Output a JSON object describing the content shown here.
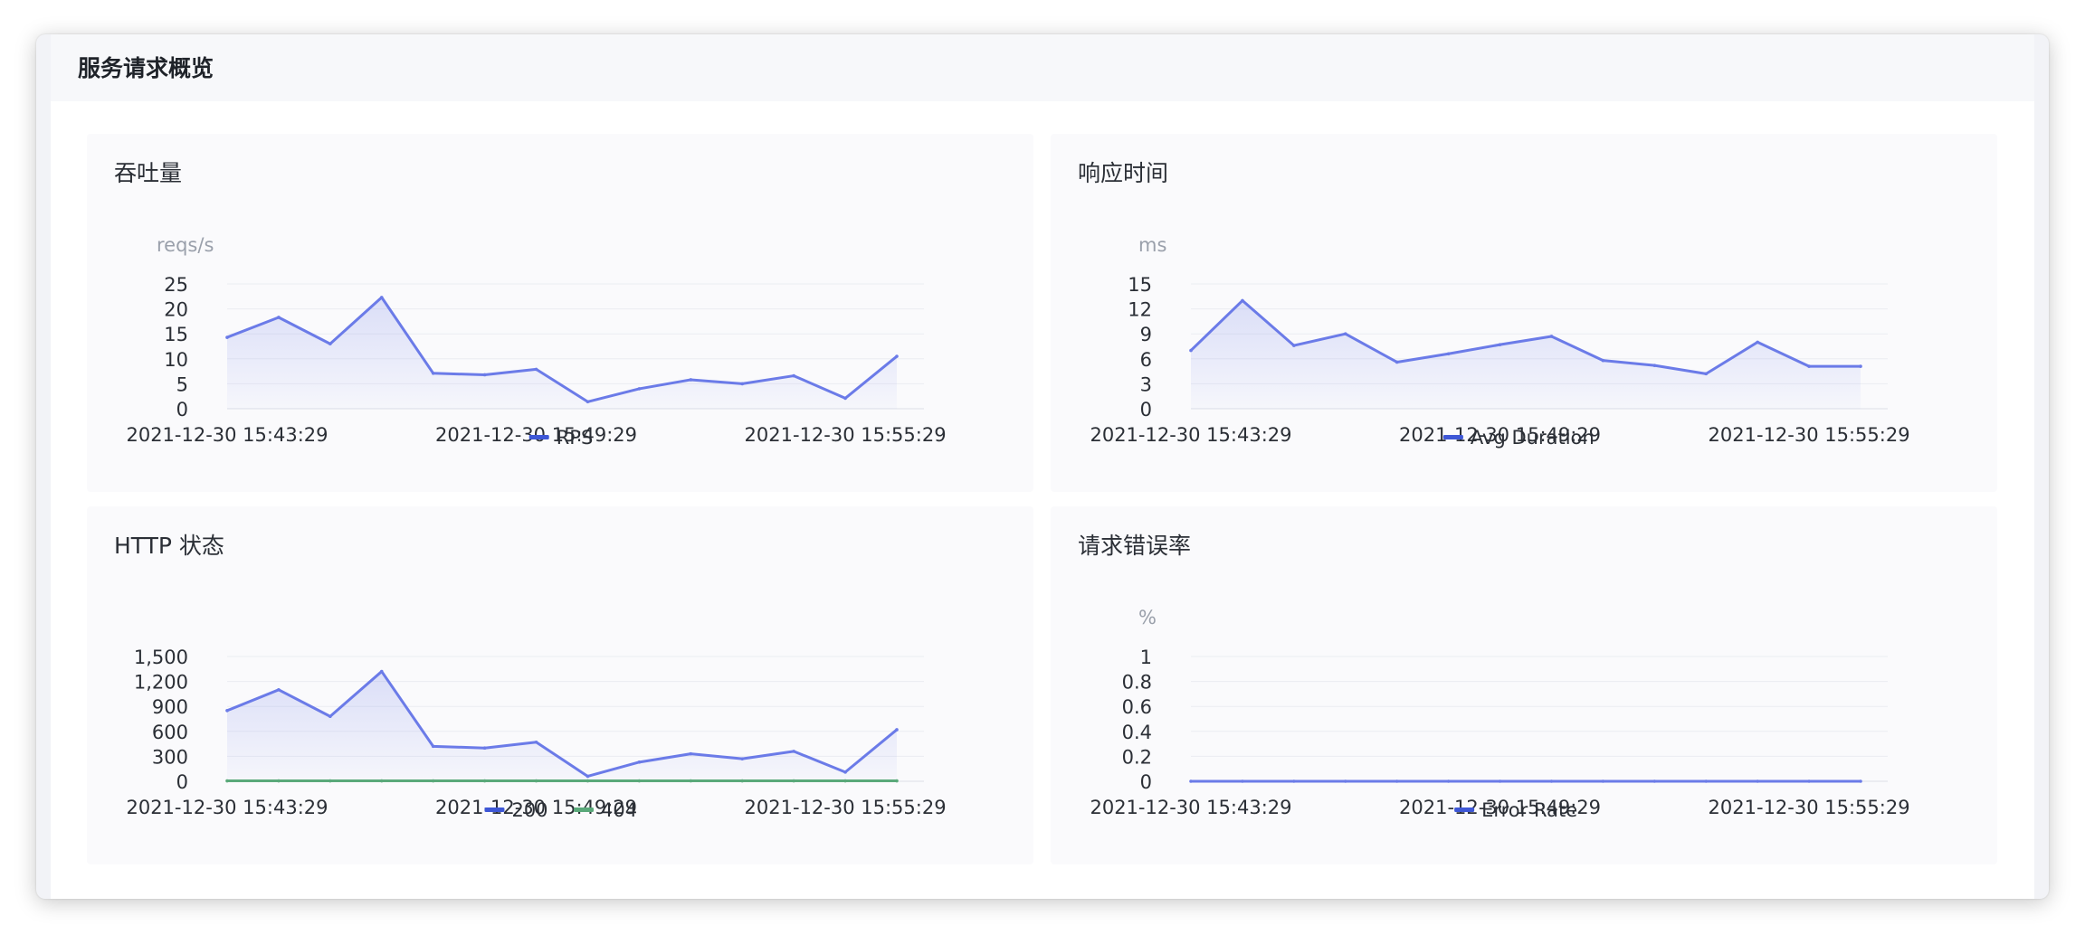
{
  "header": {
    "title": "服务请求概览"
  },
  "colors": {
    "primary": "#6b7be8",
    "primary_fill": "#dfe3fa",
    "legend_blue": "#3e57d6",
    "green": "#5aa97a",
    "axis_text": "#2b2f36",
    "unit_text": "#9aa0ab",
    "grid": "#ebedf2"
  },
  "charts": [
    {
      "title": "吞吐量",
      "chart_data": {
        "type": "area",
        "unit": "reqs/s",
        "x": [
          "2021-12-30 15:43:29",
          "2021-12-30 15:44:29",
          "2021-12-30 15:45:29",
          "2021-12-30 15:46:29",
          "2021-12-30 15:47:29",
          "2021-12-30 15:48:29",
          "2021-12-30 15:49:29",
          "2021-12-30 15:50:29",
          "2021-12-30 15:51:29",
          "2021-12-30 15:52:29",
          "2021-12-30 15:53:29",
          "2021-12-30 15:54:29",
          "2021-12-30 15:55:29",
          "2021-12-30 15:56:29"
        ],
        "x_tick_labels": [
          "2021-12-30 15:43:29",
          "2021-12-30 15:49:29",
          "2021-12-30 15:55:29"
        ],
        "y_ticks": [
          "0",
          "5",
          "10",
          "15",
          "20",
          "25"
        ],
        "ylim": [
          0,
          25
        ],
        "series": [
          {
            "name": "RPS",
            "color": "#6b7be8",
            "fill": true,
            "values": [
              14.3,
              18.3,
              13,
              22.3,
              7.1,
              6.8,
              7.9,
              1.4,
              4,
              5.8,
              5,
              6.6,
              2.1,
              10.5
            ]
          }
        ],
        "legend": [
          {
            "name": "RPS",
            "color": "#3e57d6"
          }
        ],
        "grid": true,
        "legend_position": "bottom"
      }
    },
    {
      "title": "响应时间",
      "chart_data": {
        "type": "area",
        "unit": "ms",
        "x": [
          "2021-12-30 15:43:29",
          "2021-12-30 15:44:29",
          "2021-12-30 15:45:29",
          "2021-12-30 15:46:29",
          "2021-12-30 15:47:29",
          "2021-12-30 15:48:29",
          "2021-12-30 15:49:29",
          "2021-12-30 15:50:29",
          "2021-12-30 15:51:29",
          "2021-12-30 15:52:29",
          "2021-12-30 15:53:29",
          "2021-12-30 15:54:29",
          "2021-12-30 15:55:29",
          "2021-12-30 15:56:29"
        ],
        "x_tick_labels": [
          "2021-12-30 15:43:29",
          "2021-12-30 15:49:29",
          "2021-12-30 15:55:29"
        ],
        "y_ticks": [
          "0",
          "3",
          "6",
          "9",
          "12",
          "15"
        ],
        "ylim": [
          0,
          15
        ],
        "series": [
          {
            "name": "Avg Duration",
            "color": "#6b7be8",
            "fill": true,
            "values": [
              7,
              13,
              7.6,
              9,
              5.6,
              6.6,
              7.7,
              8.7,
              5.8,
              5.2,
              4.2,
              8,
              5.1,
              5.1
            ]
          }
        ],
        "legend": [
          {
            "name": "Avg Duration",
            "color": "#3e57d6"
          }
        ],
        "grid": true,
        "legend_position": "bottom"
      }
    },
    {
      "title": "HTTP 状态",
      "chart_data": {
        "type": "area",
        "unit": "",
        "x": [
          "2021-12-30 15:43:29",
          "2021-12-30 15:44:29",
          "2021-12-30 15:45:29",
          "2021-12-30 15:46:29",
          "2021-12-30 15:47:29",
          "2021-12-30 15:48:29",
          "2021-12-30 15:49:29",
          "2021-12-30 15:50:29",
          "2021-12-30 15:51:29",
          "2021-12-30 15:52:29",
          "2021-12-30 15:53:29",
          "2021-12-30 15:54:29",
          "2021-12-30 15:55:29",
          "2021-12-30 15:56:29"
        ],
        "x_tick_labels": [
          "2021-12-30 15:43:29",
          "2021-12-30 15:49:29",
          "2021-12-30 15:55:29"
        ],
        "y_ticks": [
          "0",
          "300",
          "600",
          "900",
          "1,200",
          "1,500"
        ],
        "ylim": [
          0,
          1500
        ],
        "series": [
          {
            "name": "200",
            "color": "#6b7be8",
            "fill": true,
            "values": [
              850,
              1100,
              780,
              1320,
              420,
              400,
              470,
              60,
              230,
              330,
              270,
              360,
              110,
              620
            ]
          },
          {
            "name": "404",
            "color": "#5aa97a",
            "fill": false,
            "values": [
              5,
              5,
              5,
              5,
              5,
              5,
              5,
              5,
              5,
              5,
              5,
              5,
              5,
              5
            ]
          }
        ],
        "legend": [
          {
            "name": "200",
            "color": "#3e57d6"
          },
          {
            "name": "404",
            "color": "#5aa97a"
          }
        ],
        "grid": true,
        "legend_position": "bottom"
      }
    },
    {
      "title": "请求错误率",
      "chart_data": {
        "type": "line",
        "unit": "%",
        "x": [
          "2021-12-30 15:43:29",
          "2021-12-30 15:44:29",
          "2021-12-30 15:45:29",
          "2021-12-30 15:46:29",
          "2021-12-30 15:47:29",
          "2021-12-30 15:48:29",
          "2021-12-30 15:49:29",
          "2021-12-30 15:50:29",
          "2021-12-30 15:51:29",
          "2021-12-30 15:52:29",
          "2021-12-30 15:53:29",
          "2021-12-30 15:54:29",
          "2021-12-30 15:55:29",
          "2021-12-30 15:56:29"
        ],
        "x_tick_labels": [
          "2021-12-30 15:43:29",
          "2021-12-30 15:49:29",
          "2021-12-30 15:55:29"
        ],
        "y_ticks": [
          "0",
          "0.2",
          "0.4",
          "0.6",
          "0.8",
          "1"
        ],
        "ylim": [
          0,
          1
        ],
        "series": [
          {
            "name": "Error Rate",
            "color": "#6b7be8",
            "fill": false,
            "values": [
              0,
              0,
              0,
              0,
              0,
              0,
              0,
              0,
              0,
              0,
              0,
              0,
              0,
              0
            ]
          }
        ],
        "legend": [
          {
            "name": "Error Rate",
            "color": "#3e57d6"
          }
        ],
        "grid": true,
        "legend_position": "bottom"
      }
    }
  ]
}
